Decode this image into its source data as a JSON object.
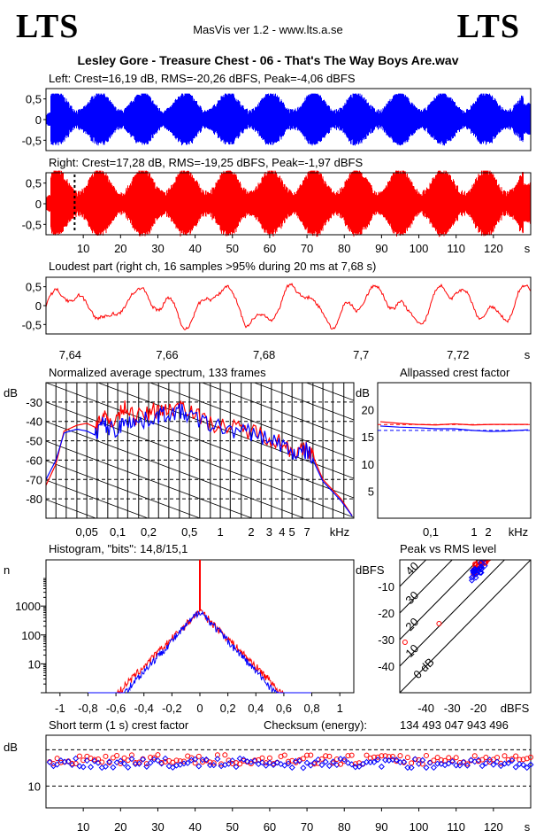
{
  "header": {
    "logo_left": "LTS",
    "logo_right": "LTS",
    "version": "MasVis ver 1.2 - www.lts.a.se",
    "filename": "Lesley Gore - Treasure Chest - 06 - That's The Way Boys Are.wav"
  },
  "colors": {
    "left": "#0000ff",
    "right": "#ff0000"
  },
  "chart_data": [
    {
      "type": "area",
      "title": "Left: Crest=16,19 dB, RMS=-20,26 dBFS, Peak=-4,06 dBFS",
      "channel": "left",
      "ylim": [
        -0.75,
        0.75
      ],
      "yticks": [
        "0,5",
        "0",
        "-0,5"
      ],
      "xlim": [
        0,
        130
      ],
      "envelope_peak": 0.63
    },
    {
      "type": "area",
      "title": "Right: Crest=17,28 dB, RMS=-19,25 dBFS, Peak=-1,97 dBFS",
      "channel": "right",
      "ylim": [
        -0.75,
        0.75
      ],
      "yticks": [
        "0,5",
        "0",
        "-0,5"
      ],
      "xlim": [
        0,
        130
      ],
      "xticks": [
        "10",
        "20",
        "30",
        "40",
        "50",
        "60",
        "70",
        "80",
        "90",
        "100",
        "110",
        "120",
        "s"
      ],
      "marker_x": 7.68,
      "envelope_peak": 0.8
    },
    {
      "type": "line",
      "title": "Loudest part (right ch, 16 samples >95% during 20 ms at 7,68 s)",
      "ylim": [
        -0.75,
        0.75
      ],
      "yticks": [
        "0,5",
        "0",
        "-0,5"
      ],
      "xlim": [
        7.635,
        7.735
      ],
      "xticks": [
        "7,64",
        "7,66",
        "7,68",
        "7,7",
        "7,72",
        "s"
      ]
    },
    {
      "type": "line",
      "title": "Normalized average spectrum, 133 frames",
      "ylabel": "dB",
      "yticks": [
        "-30",
        "-40",
        "-50",
        "-60",
        "-70",
        "-80"
      ],
      "xticks": [
        "0,05",
        "0,1",
        "0,2",
        "0,5",
        "1",
        "2",
        "3",
        "4",
        "5",
        "7",
        "kHz"
      ],
      "ylim": [
        -90,
        -20
      ],
      "xlim_khz": [
        0.02,
        20
      ],
      "series": [
        {
          "channel": "right",
          "points": [
            [
              0.02,
              -73
            ],
            [
              0.025,
              -62
            ],
            [
              0.03,
              -45
            ],
            [
              0.04,
              -42
            ],
            [
              0.05,
              -41
            ],
            [
              0.06,
              -43
            ],
            [
              0.07,
              -37
            ],
            [
              0.08,
              -40
            ],
            [
              0.1,
              -38
            ],
            [
              0.12,
              -32
            ],
            [
              0.15,
              -38
            ],
            [
              0.2,
              -36
            ],
            [
              0.25,
              -33
            ],
            [
              0.3,
              -35
            ],
            [
              0.4,
              -31
            ],
            [
              0.5,
              -33
            ],
            [
              0.7,
              -40
            ],
            [
              1,
              -42
            ],
            [
              1.5,
              -44
            ],
            [
              2,
              -45
            ],
            [
              3,
              -48
            ],
            [
              4,
              -51
            ],
            [
              5,
              -55
            ],
            [
              6,
              -56
            ],
            [
              7,
              -54
            ],
            [
              8,
              -58
            ],
            [
              10,
              -70
            ],
            [
              15,
              -80
            ],
            [
              20,
              -90
            ]
          ]
        },
        {
          "channel": "left",
          "points": [
            [
              0.02,
              -70
            ],
            [
              0.025,
              -60
            ],
            [
              0.03,
              -46
            ],
            [
              0.04,
              -44
            ],
            [
              0.05,
              -45
            ],
            [
              0.06,
              -47
            ],
            [
              0.07,
              -41
            ],
            [
              0.08,
              -43
            ],
            [
              0.1,
              -45
            ],
            [
              0.12,
              -38
            ],
            [
              0.15,
              -41
            ],
            [
              0.2,
              -39
            ],
            [
              0.25,
              -37
            ],
            [
              0.3,
              -36
            ],
            [
              0.4,
              -35
            ],
            [
              0.5,
              -37
            ],
            [
              0.7,
              -41
            ],
            [
              1,
              -43
            ],
            [
              1.5,
              -45
            ],
            [
              2,
              -46
            ],
            [
              3,
              -49
            ],
            [
              4,
              -52
            ],
            [
              5,
              -56
            ],
            [
              6,
              -57
            ],
            [
              7,
              -55
            ],
            [
              8,
              -60
            ],
            [
              10,
              -71
            ],
            [
              15,
              -81
            ],
            [
              20,
              -90
            ]
          ]
        }
      ]
    },
    {
      "type": "line",
      "title": "Allpassed crest factor",
      "ylabel": "dB",
      "yticks": [
        "20",
        "15",
        "10",
        "5"
      ],
      "xticks": [
        "0,1",
        "1",
        "2",
        "kHz"
      ],
      "ylim": [
        0,
        25
      ],
      "series": [
        {
          "channel": "right",
          "values": [
            17.8,
            17.5,
            17.3,
            17.2,
            17.4,
            17.2,
            17.3,
            17.3,
            17.3
          ]
        },
        {
          "channel": "left",
          "values": [
            17.0,
            16.8,
            16.7,
            16.5,
            16.5,
            16.2,
            16.0,
            16.1,
            16.3
          ]
        }
      ],
      "reference_lines": [
        17.28,
        16.19
      ]
    },
    {
      "type": "line",
      "title": "Histogram, \"bits\": 14,8/15,1",
      "ylabel": "n",
      "yticks": [
        "1000",
        "100",
        "10"
      ],
      "xticks": [
        "-1",
        "-0,8",
        "-0,6",
        "-0,4",
        "-0,2",
        "0",
        "0,2",
        "0,4",
        "0,6",
        "0,8",
        "1"
      ],
      "xlim": [
        -1.1,
        1.1
      ],
      "yscale": "log"
    },
    {
      "type": "scatter",
      "title": "Peak vs RMS level",
      "ylabel": "dBFS",
      "xlabel": "dBFS",
      "yticks": [
        "-10",
        "-20",
        "-30",
        "-40"
      ],
      "xticks": [
        "-40",
        "-30",
        "-20"
      ],
      "diagonal_labels": [
        "40",
        "30",
        "20",
        "10",
        "0 dB"
      ],
      "xlim": [
        -50,
        0
      ],
      "ylim": [
        -50,
        0
      ]
    },
    {
      "type": "scatter",
      "title": "Short term (1 s) crest factor",
      "ylabel": "dB",
      "yticks": [
        "10"
      ],
      "xticks": [
        "10",
        "20",
        "30",
        "40",
        "50",
        "60",
        "70",
        "80",
        "90",
        "100",
        "110",
        "120",
        "s"
      ],
      "xlim": [
        0,
        130
      ],
      "checksum_label": "Checksum (energy):",
      "checksum_value": "134 493 047 943 496"
    }
  ]
}
